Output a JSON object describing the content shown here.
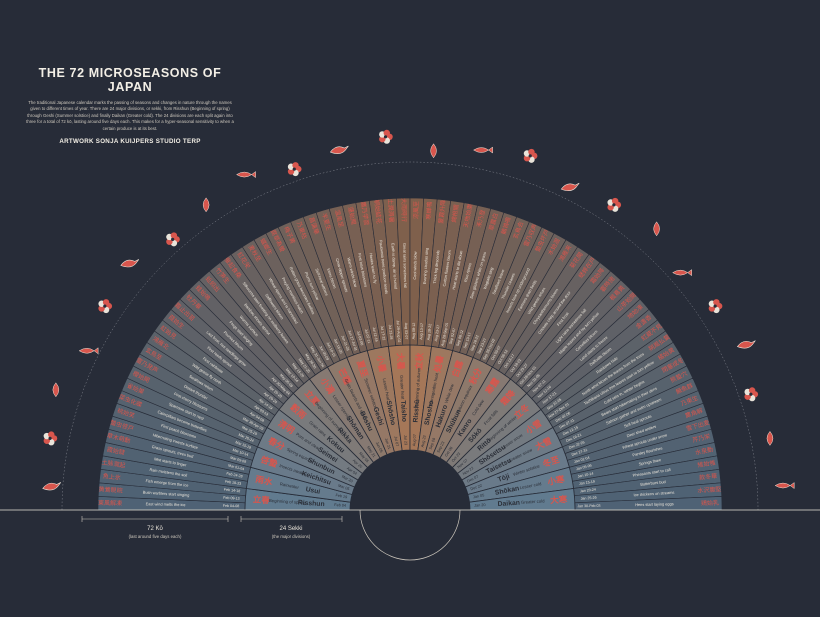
{
  "title": "THE 72 MICROSEASONS OF JAPAN",
  "description": "The traditional Japanese calendar marks the passing of seasons and changes in nature through the names given to different times of year. There are 24 major divisions, or sekki, from Risshun (Beginning of spring) through Geshi (Summer solstice) and finally Daikan (Greater cold). The 24 divisions are each split again into three for a total of 72 kō, lasting around five days each. This makes for a hyper-seasonal sensitivity to when a certain produce is at its best.",
  "credit": "ARTWORK SONJA KUIJPERS STUDIO TERP",
  "legend": {
    "ko_label": "72 Kō",
    "ko_note": "(last around five days each)",
    "sekki_label": "24 Sekki",
    "sekki_note": "(the major divisions)"
  },
  "sekki": [
    {
      "kanji": "立春",
      "romaji": "Risshun",
      "english": "Beginning of spring",
      "date": "Feb 04"
    },
    {
      "kanji": "雨水",
      "romaji": "Usui",
      "english": "Rainwater",
      "date": "Feb 19"
    },
    {
      "kanji": "啓蟄",
      "romaji": "Keichitsu",
      "english": "Insects awaken",
      "date": "Mar 05"
    },
    {
      "kanji": "春分",
      "romaji": "Shunbun",
      "english": "Spring equinox",
      "date": "Mar 20"
    },
    {
      "kanji": "清明",
      "romaji": "Seimei",
      "english": "Pure and clear",
      "date": "Apr 04"
    },
    {
      "kanji": "穀雨",
      "romaji": "Kokuu",
      "english": "Grain rains",
      "date": "Apr 20"
    },
    {
      "kanji": "立夏",
      "romaji": "Rikka",
      "english": "Beginning of summer",
      "date": "May 05"
    },
    {
      "kanji": "小満",
      "romaji": "Shōman",
      "english": "Lesser ripening",
      "date": "May 21"
    },
    {
      "kanji": "芒種",
      "romaji": "Bōshu",
      "english": "Grain beards and seeds",
      "date": "Jun 05"
    },
    {
      "kanji": "夏至",
      "romaji": "Geshi",
      "english": "Summer solstice",
      "date": "Jun 21"
    },
    {
      "kanji": "小暑",
      "romaji": "Shōsho",
      "english": "Lesser heat",
      "date": "Jul 07"
    },
    {
      "kanji": "大暑",
      "romaji": "Taisho",
      "english": "Greater heat",
      "date": "Jul 23"
    },
    {
      "kanji": "立秋",
      "romaji": "Risshū",
      "english": "Beginning of autumn",
      "date": "Aug 07"
    },
    {
      "kanji": "処暑",
      "romaji": "Shosho",
      "english": "Manageable heat",
      "date": "Aug 23"
    },
    {
      "kanji": "白露",
      "romaji": "Hakuro",
      "english": "White dew",
      "date": "Sep 08"
    },
    {
      "kanji": "秋分",
      "romaji": "Shūbun",
      "english": "Autumn equinox",
      "date": "Sep 23"
    },
    {
      "kanji": "寒露",
      "romaji": "Kanro",
      "english": "Cold dew",
      "date": "Oct 08"
    },
    {
      "kanji": "霜降",
      "romaji": "Sōkō",
      "english": "Frost falls",
      "date": "Oct 23"
    },
    {
      "kanji": "立冬",
      "romaji": "Rittō",
      "english": "Beginning of winter",
      "date": "Nov 07"
    },
    {
      "kanji": "小雪",
      "romaji": "Shōsetsu",
      "english": "Lesser snow",
      "date": "Nov 22"
    },
    {
      "kanji": "大雪",
      "romaji": "Taisetsu",
      "english": "Greater snow",
      "date": "Dec 07"
    },
    {
      "kanji": "冬至",
      "romaji": "Tōji",
      "english": "Winter solstice",
      "date": "Dec 22"
    },
    {
      "kanji": "小寒",
      "romaji": "Shōkan",
      "english": "Lesser cold",
      "date": "Jan 05"
    },
    {
      "kanji": "大寒",
      "romaji": "Daikan",
      "english": "Greater cold",
      "date": "Jan 20"
    }
  ],
  "ko": [
    {
      "kanji": "東風解凍",
      "english": "East wind melts the ice",
      "dates": "Feb 04-08"
    },
    {
      "kanji": "黄鶯睍睆",
      "english": "Bush warblers start singing",
      "dates": "Feb 09-13"
    },
    {
      "kanji": "魚上氷",
      "english": "Fish emerge from the ice",
      "dates": "Feb 14-18"
    },
    {
      "kanji": "土脉潤起",
      "english": "Rain moistens the soil",
      "dates": "Feb 19-23"
    },
    {
      "kanji": "霞始靆",
      "english": "Mist starts to linger",
      "dates": "Feb 24-28"
    },
    {
      "kanji": "草木萌動",
      "english": "Grass sprouts, trees bud",
      "dates": "Mar 01-04"
    },
    {
      "kanji": "蟄虫啓戸",
      "english": "Hibernating insects surface",
      "dates": "Mar 05-09"
    },
    {
      "kanji": "桃始笑",
      "english": "First peach blossoms",
      "dates": "Mar 10-14"
    },
    {
      "kanji": "菜虫化蝶",
      "english": "Caterpillars become butterflies",
      "dates": "Mar 15-19"
    },
    {
      "kanji": "雀始巣",
      "english": "Sparrows start to nest",
      "dates": "Mar 20-24"
    },
    {
      "kanji": "櫻始開",
      "english": "First cherry blossoms",
      "dates": "Mar 25-29"
    },
    {
      "kanji": "雷乃発声",
      "english": "Distant thunder",
      "dates": "Mar 30-Apr 03"
    },
    {
      "kanji": "玄鳥至",
      "english": "Swallows return",
      "dates": "Apr 04-08"
    },
    {
      "kanji": "鴻雁北",
      "english": "Wild geese fly north",
      "dates": "Apr 09-13"
    },
    {
      "kanji": "虹始見",
      "english": "First rainbows",
      "dates": "Apr 14-19"
    },
    {
      "kanji": "葭始生",
      "english": "First reeds sprout",
      "dates": "Apr 20-24"
    },
    {
      "kanji": "霜止出苗",
      "english": "Last frost, rice seedlings grow",
      "dates": "Apr 25-29"
    },
    {
      "kanji": "牡丹華",
      "english": "Peonies bloom",
      "dates": "Apr 30-May 04"
    },
    {
      "kanji": "蛙始鳴",
      "english": "Frogs start singing",
      "dates": "May 05-09"
    },
    {
      "kanji": "蚯蚓出",
      "english": "Worms surface",
      "dates": "May 10-14"
    },
    {
      "kanji": "竹笋生",
      "english": "Bamboo shoots sprout",
      "dates": "May 15-20"
    },
    {
      "kanji": "蚕起食桑",
      "english": "Silkworms start feasting on mulberry leaves",
      "dates": "May 21-25"
    },
    {
      "kanji": "紅花栄",
      "english": "Safflowers bloom",
      "dates": "May 26-30"
    },
    {
      "kanji": "麦秋至",
      "english": "Wheat ripens and is harvested",
      "dates": "May 31-Jun 04"
    },
    {
      "kanji": "蟷螂生",
      "english": "Praying mantises hatch",
      "dates": "Jun 05-09"
    },
    {
      "kanji": "腐草為螢",
      "english": "Rotten grass becomes fireflies",
      "dates": "Jun 10-15"
    },
    {
      "kanji": "梅子黄",
      "english": "Plums turn yellow",
      "dates": "Jun 16-20"
    },
    {
      "kanji": "乃東枯",
      "english": "Self-heal withers",
      "dates": "Jun 21-26"
    },
    {
      "kanji": "菖蒲華",
      "english": "Irises bloom",
      "dates": "Jun 27-Jul 01"
    },
    {
      "kanji": "半夏生",
      "english": "Crow-dipper sprouts",
      "dates": "Jul 02-06"
    },
    {
      "kanji": "温風至",
      "english": "Warm winds blow",
      "dates": "Jul 07-11"
    },
    {
      "kanji": "蓮始開",
      "english": "First lotus blossoms",
      "dates": "Jul 12-16"
    },
    {
      "kanji": "鷹乃学習",
      "english": "Hawks learn to fly",
      "dates": "Jul 17-22"
    },
    {
      "kanji": "桐始結花",
      "english": "Paulownia trees produce seeds",
      "dates": "Jul 23-28"
    },
    {
      "kanji": "土潤溽暑",
      "english": "Earth is damp, air is humid",
      "dates": "Jul 29-Aug 02"
    },
    {
      "kanji": "大雨時行",
      "english": "Great rains sometimes fall",
      "dates": "Aug 03-07"
    },
    {
      "kanji": "涼風至",
      "english": "Cool winds blow",
      "dates": "Aug 08-12"
    },
    {
      "kanji": "寒蝉鳴",
      "english": "Evening cicadas sing",
      "dates": "Aug 13-17"
    },
    {
      "kanji": "蒙霧升降",
      "english": "Thick fog descends",
      "dates": "Aug 18-22"
    },
    {
      "kanji": "綿柎開",
      "english": "Cotton flowers bloom",
      "dates": "Aug 23-27"
    },
    {
      "kanji": "天地始粛",
      "english": "Heat starts to die down",
      "dates": "Aug 28-Sep 01"
    },
    {
      "kanji": "禾乃登",
      "english": "Rice ripens",
      "dates": "Sep 02-07"
    },
    {
      "kanji": "草露白",
      "english": "Dew glistens white on grass",
      "dates": "Sep 08-12"
    },
    {
      "kanji": "鶺鴒鳴",
      "english": "Wagtails sing",
      "dates": "Sep 13-17"
    },
    {
      "kanji": "玄鳥去",
      "english": "Swallows leave",
      "dates": "Sep 18-22"
    },
    {
      "kanji": "雷乃収声",
      "english": "Thunder ceases",
      "dates": "Sep 23-27"
    },
    {
      "kanji": "蟄虫坏戸",
      "english": "Insects hole up underground",
      "dates": "Sep 28-Oct 02"
    },
    {
      "kanji": "水始涸",
      "english": "Farmers drain fields",
      "dates": "Oct 03-07"
    },
    {
      "kanji": "鴻雁来",
      "english": "Wild geese return",
      "dates": "Oct 08-12"
    },
    {
      "kanji": "菊花開",
      "english": "Chrysanthemums bloom",
      "dates": "Oct 13-17"
    },
    {
      "kanji": "蟋蟀在戸",
      "english": "Crickets chirp around the door",
      "dates": "Oct 18-22"
    },
    {
      "kanji": "霜始降",
      "english": "First frost",
      "dates": "Oct 23-27"
    },
    {
      "kanji": "霎時施",
      "english": "Light rains sometimes fall",
      "dates": "Oct 28-Nov 01"
    },
    {
      "kanji": "楓蔦黄",
      "english": "Maple leaves and ivy turn yellow",
      "dates": "Nov 02-06"
    },
    {
      "kanji": "山茶始開",
      "english": "Camellias bloom",
      "dates": "Nov 07-11"
    },
    {
      "kanji": "地始凍",
      "english": "Land starts to freeze",
      "dates": "Nov 12-16"
    },
    {
      "kanji": "金盞香",
      "english": "Daffodils bloom",
      "dates": "Nov 17-21"
    },
    {
      "kanji": "虹蔵不見",
      "english": "Rainbows hide",
      "dates": "Nov 22-26"
    },
    {
      "kanji": "朔風払葉",
      "english": "North wind blows the leaves from the trees",
      "dates": "Nov 27-Dec 01"
    },
    {
      "kanji": "橘始黄",
      "english": "Tachibana citrus tree leaves start to turn yellow",
      "dates": "Dec 02-06"
    },
    {
      "kanji": "閉塞成冬",
      "english": "Cold sets in, winter begins",
      "dates": "Dec 07-11"
    },
    {
      "kanji": "熊蟄穴",
      "english": "Bears start hibernating in their dens",
      "dates": "Dec 12-15"
    },
    {
      "kanji": "鱖魚群",
      "english": "Salmon gather and swim upstream",
      "dates": "Dec 16-21"
    },
    {
      "kanji": "乃東生",
      "english": "Self-heal sprouts",
      "dates": "Dec 22-26"
    },
    {
      "kanji": "麋角解",
      "english": "Deer shed antlers",
      "dates": "Dec 27-31"
    },
    {
      "kanji": "雪下出麦",
      "english": "Wheat sprouts under snow",
      "dates": "Jan 01-04"
    },
    {
      "kanji": "芹乃栄",
      "english": "Parsley flourishes",
      "dates": "Jan 05-09"
    },
    {
      "kanji": "水泉動",
      "english": "Springs thaw",
      "dates": "Jan 10-14"
    },
    {
      "kanji": "雉始雊",
      "english": "Pheasants start to call",
      "dates": "Jan 15-19"
    },
    {
      "kanji": "款冬華",
      "english": "Butterburs bud",
      "dates": "Jan 20-24"
    },
    {
      "kanji": "水沢腹堅",
      "english": "Ice thickens on streams",
      "dates": "Jan 25-29"
    },
    {
      "kanji": "鶏始乳",
      "english": "Hens start laying eggs",
      "dates": "Jan 30-Feb 03"
    }
  ],
  "colors": {
    "background": "#272c38",
    "accent_red": "#d8564d",
    "cream": "#e9e4da",
    "summer_warm": "#c98a5c",
    "winter_cool": "#6f8fa6",
    "text_dark": "#2b2f38"
  }
}
